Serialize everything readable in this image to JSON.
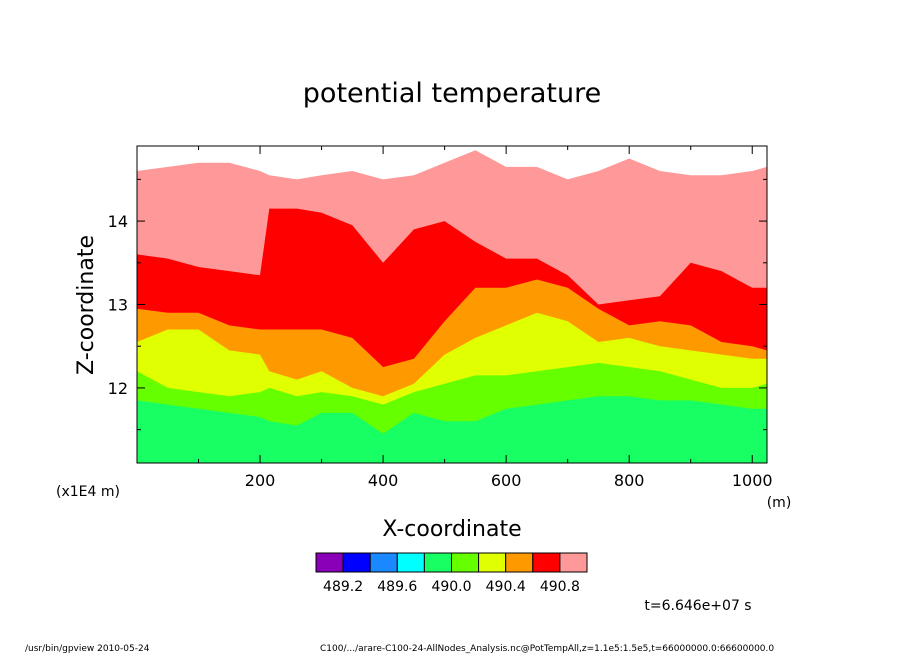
{
  "chart_data": {
    "type": "heatmap",
    "title": "potential temperature",
    "xlabel": "X-coordinate",
    "ylabel": "Z-coordinate",
    "x_unit": "(m)",
    "y_unit": "(x1E4 m)",
    "xlim": [
      0,
      1024
    ],
    "ylim": [
      11.1,
      14.9
    ],
    "x_ticks": [
      200,
      400,
      600,
      800,
      1000
    ],
    "x_tick_labels": [
      "200",
      "400",
      "600",
      "800",
      "1000"
    ],
    "y_ticks": [
      12,
      13,
      14
    ],
    "y_tick_labels": [
      "12",
      "13",
      "14"
    ],
    "grid": false,
    "legend": "bottom",
    "colorbar": {
      "levels": [
        489.0,
        489.2,
        489.4,
        489.6,
        489.8,
        490.0,
        490.2,
        490.4,
        490.6,
        490.8,
        491.0
      ],
      "colors": [
        "#8a00b8",
        "#0000ff",
        "#1a88ff",
        "#00ffff",
        "#18ff64",
        "#66ff00",
        "#e0ff00",
        "#ff9900",
        "#ff0000",
        "#ff9999"
      ],
      "tick_values": [
        489.2,
        489.6,
        490.0,
        490.4,
        490.8
      ],
      "tick_labels": [
        "489.2",
        "489.6",
        "490.0",
        "490.4",
        "490.8"
      ]
    },
    "contour_boundaries_z": {
      "note_levels": "boundary heights of filled bands across x, in x1E4 m",
      "x": [
        0,
        50,
        100,
        150,
        200,
        215,
        260,
        300,
        350,
        400,
        450,
        500,
        550,
        600,
        650,
        700,
        750,
        800,
        850,
        900,
        950,
        1000,
        1024
      ],
      "b490_0": [
        11.85,
        11.8,
        11.75,
        11.7,
        11.65,
        11.6,
        11.55,
        11.7,
        11.7,
        11.45,
        11.7,
        11.6,
        11.6,
        11.75,
        11.8,
        11.85,
        11.9,
        11.9,
        11.85,
        11.85,
        11.8,
        11.75,
        11.75
      ],
      "b490_2": [
        12.2,
        12.0,
        11.95,
        11.9,
        11.95,
        12.0,
        11.9,
        11.95,
        11.9,
        11.8,
        11.95,
        12.05,
        12.15,
        12.15,
        12.2,
        12.25,
        12.3,
        12.25,
        12.2,
        12.1,
        12.0,
        12.0,
        12.05
      ],
      "b490_4": [
        12.55,
        12.7,
        12.7,
        12.45,
        12.4,
        12.2,
        12.1,
        12.2,
        12.0,
        11.9,
        12.05,
        12.4,
        12.6,
        12.75,
        12.9,
        12.8,
        12.55,
        12.6,
        12.5,
        12.45,
        12.4,
        12.35,
        12.35
      ],
      "b490_6": [
        12.95,
        12.9,
        12.9,
        12.75,
        12.7,
        12.7,
        12.7,
        12.7,
        12.6,
        12.25,
        12.35,
        12.8,
        13.2,
        13.2,
        13.3,
        13.2,
        12.95,
        12.75,
        12.8,
        12.75,
        12.55,
        12.5,
        12.45
      ],
      "b490_8": [
        13.6,
        13.55,
        13.45,
        13.4,
        13.35,
        14.15,
        14.15,
        14.1,
        13.95,
        13.5,
        13.9,
        14.0,
        13.75,
        13.55,
        13.55,
        13.35,
        13.0,
        13.05,
        13.1,
        13.5,
        13.4,
        13.2,
        13.2
      ],
      "b491_0": [
        14.6,
        14.65,
        14.7,
        14.7,
        14.6,
        14.55,
        14.5,
        14.55,
        14.6,
        14.5,
        14.55,
        14.7,
        14.85,
        14.65,
        14.65,
        14.5,
        14.6,
        14.75,
        14.6,
        14.55,
        14.55,
        14.6,
        14.65
      ]
    }
  },
  "annotations": {
    "time_label": "t=6.646e+07 s",
    "footer_left": "/usr/bin/gpview   2010-05-24",
    "footer_right": "C100/.../arare-C100-24-AllNodes_Analysis.nc@PotTempAll,z=1.1e5:1.5e5,t=66000000.0:66600000.0"
  }
}
